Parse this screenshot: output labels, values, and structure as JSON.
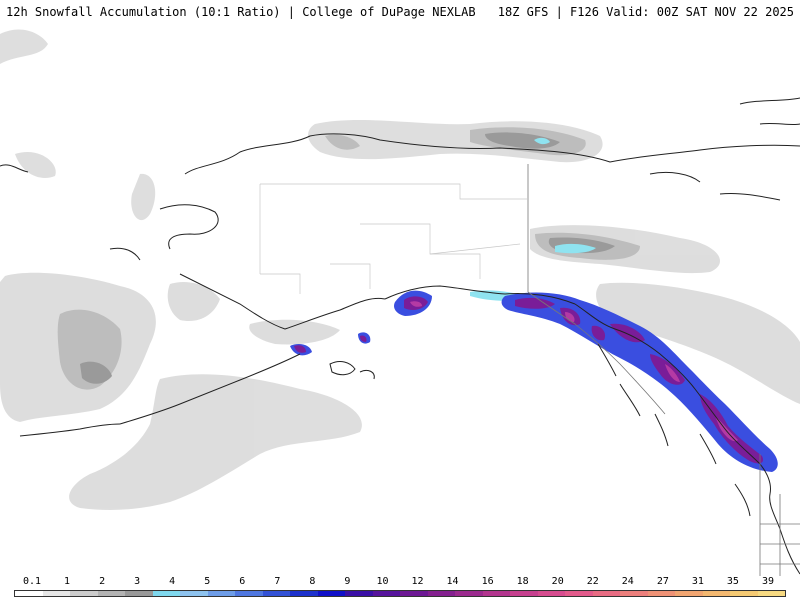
{
  "header": {
    "left_title": "12h Snowfall Accumulation (10:1 Ratio) | College of DuPage NEXLAB",
    "right_title": "18Z GFS | F126 Valid: 00Z SAT NOV 22 2025"
  },
  "legend": {
    "labels": [
      "0.1",
      "1",
      "2",
      "3",
      "4",
      "5",
      "6",
      "7",
      "8",
      "9",
      "10",
      "12",
      "14",
      "16",
      "18",
      "20",
      "22",
      "24",
      "27",
      "31",
      "35",
      "39"
    ],
    "colors": [
      "#ffffff",
      "#e6e6e6",
      "#cccccc",
      "#b3b3b3",
      "#999999",
      "#7fd8ee",
      "#8ec3ef",
      "#6e9de8",
      "#4f77e0",
      "#3352d6",
      "#1d31cc",
      "#1010c8",
      "#3a0fa6",
      "#56139c",
      "#6d1894",
      "#84208f",
      "#9b2a8e",
      "#b2358e",
      "#c6408f",
      "#d64c8f",
      "#e25a8b",
      "#e86c83",
      "#ec7f7c",
      "#ef9276",
      "#f1a571",
      "#f3b870",
      "#f5ca73",
      "#f7da82"
    ]
  },
  "map": {
    "region": "Alaska / Northwest Canada",
    "colors": {
      "ocean": "#ffffff",
      "coast": "#222222",
      "border": "#777777",
      "snow_light": "#dcdcdc",
      "snow_med": "#bdbdbd",
      "snow_dark": "#9a9a9a",
      "cyan": "#8fe3f0",
      "blue": "#2b3fd6",
      "purple": "#7a1d98",
      "magenta": "#b43aa4"
    }
  }
}
